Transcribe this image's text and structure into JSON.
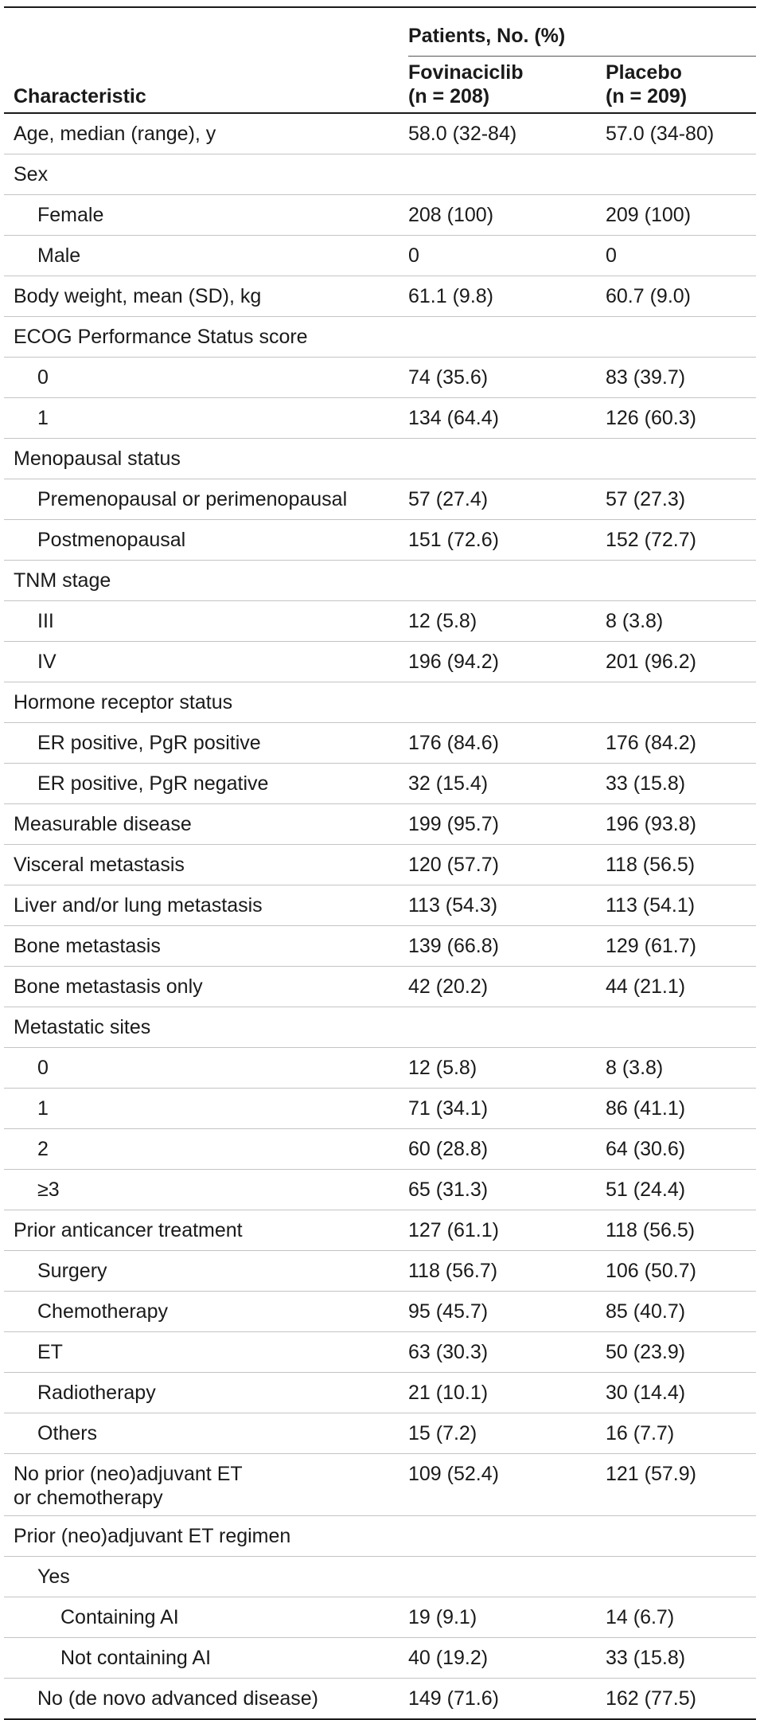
{
  "table": {
    "header": {
      "span_label": "Patients, No. (%)",
      "characteristic_label": "Characteristic",
      "col1_name": "Fovinaciclib",
      "col1_n": "(n = 208)",
      "col2_name": "Placebo",
      "col2_n": "(n = 209)"
    },
    "rows": [
      {
        "label": "Age, median (range), y",
        "v1": "58.0 (32-84)",
        "v2": "57.0 (34-80)",
        "level": 0
      },
      {
        "label": "Sex",
        "v1": "",
        "v2": "",
        "level": 0
      },
      {
        "label": "Female",
        "v1": "208 (100)",
        "v2": "209 (100)",
        "level": 1
      },
      {
        "label": "Male",
        "v1": "0",
        "v2": "0",
        "level": 1
      },
      {
        "label": "Body weight, mean (SD), kg",
        "v1": "61.1 (9.8)",
        "v2": "60.7 (9.0)",
        "level": 0
      },
      {
        "label": "ECOG Performance Status score",
        "v1": "",
        "v2": "",
        "level": 0
      },
      {
        "label": "0",
        "v1": "74 (35.6)",
        "v2": "83 (39.7)",
        "level": 1
      },
      {
        "label": "1",
        "v1": "134 (64.4)",
        "v2": "126 (60.3)",
        "level": 1
      },
      {
        "label": "Menopausal status",
        "v1": "",
        "v2": "",
        "level": 0
      },
      {
        "label": "Premenopausal or perimenopausal",
        "v1": "57 (27.4)",
        "v2": "57 (27.3)",
        "level": 1
      },
      {
        "label": "Postmenopausal",
        "v1": "151 (72.6)",
        "v2": "152 (72.7)",
        "level": 1
      },
      {
        "label": "TNM stage",
        "v1": "",
        "v2": "",
        "level": 0
      },
      {
        "label": "III",
        "v1": "12 (5.8)",
        "v2": "8 (3.8)",
        "level": 1
      },
      {
        "label": "IV",
        "v1": "196 (94.2)",
        "v2": "201 (96.2)",
        "level": 1
      },
      {
        "label": "Hormone receptor status",
        "v1": "",
        "v2": "",
        "level": 0
      },
      {
        "label": "ER positive, PgR positive",
        "v1": "176 (84.6)",
        "v2": "176 (84.2)",
        "level": 1
      },
      {
        "label": "ER positive, PgR negative",
        "v1": "32 (15.4)",
        "v2": "33 (15.8)",
        "level": 1
      },
      {
        "label": "Measurable disease",
        "v1": "199 (95.7)",
        "v2": "196 (93.8)",
        "level": 0
      },
      {
        "label": "Visceral metastasis",
        "v1": "120 (57.7)",
        "v2": "118 (56.5)",
        "level": 0
      },
      {
        "label": "Liver and/or lung metastasis",
        "v1": "113 (54.3)",
        "v2": "113 (54.1)",
        "level": 0
      },
      {
        "label": "Bone metastasis",
        "v1": "139 (66.8)",
        "v2": "129 (61.7)",
        "level": 0
      },
      {
        "label": "Bone metastasis only",
        "v1": "42 (20.2)",
        "v2": "44 (21.1)",
        "level": 0
      },
      {
        "label": "Metastatic sites",
        "v1": "",
        "v2": "",
        "level": 0
      },
      {
        "label": "0",
        "v1": "12 (5.8)",
        "v2": "8 (3.8)",
        "level": 1
      },
      {
        "label": "1",
        "v1": "71 (34.1)",
        "v2": "86 (41.1)",
        "level": 1
      },
      {
        "label": "2",
        "v1": "60 (28.8)",
        "v2": "64 (30.6)",
        "level": 1
      },
      {
        "label": "≥3",
        "v1": "65 (31.3)",
        "v2": "51 (24.4)",
        "level": 1
      },
      {
        "label": "Prior anticancer treatment",
        "v1": "127 (61.1)",
        "v2": "118 (56.5)",
        "level": 0
      },
      {
        "label": "Surgery",
        "v1": "118 (56.7)",
        "v2": "106 (50.7)",
        "level": 1
      },
      {
        "label": "Chemotherapy",
        "v1": "95 (45.7)",
        "v2": "85 (40.7)",
        "level": 1
      },
      {
        "label": "ET",
        "v1": "63 (30.3)",
        "v2": "50 (23.9)",
        "level": 1
      },
      {
        "label": "Radiotherapy",
        "v1": "21 (10.1)",
        "v2": "30 (14.4)",
        "level": 1
      },
      {
        "label": "Others",
        "v1": "15 (7.2)",
        "v2": "16 (7.7)",
        "level": 1
      },
      {
        "label": "No prior (neo)adjuvant ET",
        "label2": "or chemotherapy",
        "v1": "109 (52.4)",
        "v2": "121 (57.9)",
        "level": 0
      },
      {
        "label": "Prior (neo)adjuvant ET regimen",
        "v1": "",
        "v2": "",
        "level": 0
      },
      {
        "label": "Yes",
        "v1": "",
        "v2": "",
        "level": 1
      },
      {
        "label": "Containing AI",
        "v1": "19 (9.1)",
        "v2": "14 (6.7)",
        "level": 2
      },
      {
        "label": "Not containing AI",
        "v1": "40 (19.2)",
        "v2": "33 (15.8)",
        "level": 2
      },
      {
        "label": "No (de novo advanced disease)",
        "v1": "149 (71.6)",
        "v2": "162 (77.5)",
        "level": 1
      }
    ]
  }
}
